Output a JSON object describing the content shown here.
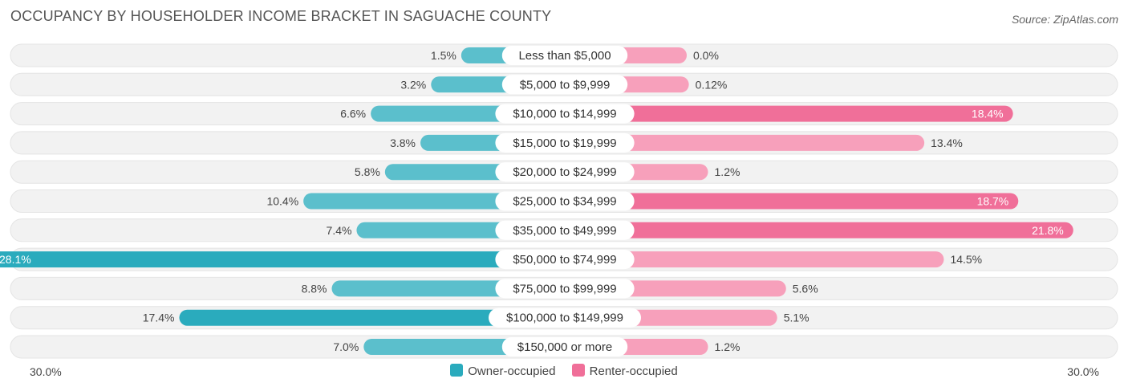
{
  "title": "OCCUPANCY BY HOUSEHOLDER INCOME BRACKET IN SAGUACHE COUNTY",
  "source": "Source: ZipAtlas.com",
  "colors": {
    "owner": "#5bbfcc",
    "owner_strong": "#2aabbd",
    "renter": "#f7a0bb",
    "renter_strong": "#f06f99",
    "track": "#f2f2f2"
  },
  "legend": {
    "owner_label": "Owner-occupied",
    "renter_label": "Renter-occupied"
  },
  "axis": {
    "left_label": "30.0%",
    "right_label": "30.0%"
  },
  "chart_data": {
    "type": "bar",
    "orientation": "horizontal-diverging",
    "xlim": [
      -30,
      30
    ],
    "categories": [
      "Less than $5,000",
      "$5,000 to $9,999",
      "$10,000 to $14,999",
      "$15,000 to $19,999",
      "$20,000 to $24,999",
      "$25,000 to $34,999",
      "$35,000 to $49,999",
      "$50,000 to $74,999",
      "$75,000 to $99,999",
      "$100,000 to $149,999",
      "$150,000 or more"
    ],
    "series": [
      {
        "name": "Owner-occupied",
        "values": [
          1.5,
          3.2,
          6.6,
          3.8,
          5.8,
          10.4,
          7.4,
          28.1,
          8.8,
          17.4,
          7.0
        ],
        "labels": [
          "1.5%",
          "3.2%",
          "6.6%",
          "3.8%",
          "5.8%",
          "10.4%",
          "7.4%",
          "28.1%",
          "8.8%",
          "17.4%",
          "7.0%"
        ]
      },
      {
        "name": "Renter-occupied",
        "values": [
          0.0,
          0.12,
          18.4,
          13.4,
          1.2,
          18.7,
          21.8,
          14.5,
          5.6,
          5.1,
          1.2
        ],
        "labels": [
          "0.0%",
          "0.12%",
          "18.4%",
          "13.4%",
          "1.2%",
          "18.7%",
          "21.8%",
          "14.5%",
          "5.6%",
          "5.1%",
          "1.2%"
        ]
      }
    ],
    "legend_position": "bottom-center"
  }
}
